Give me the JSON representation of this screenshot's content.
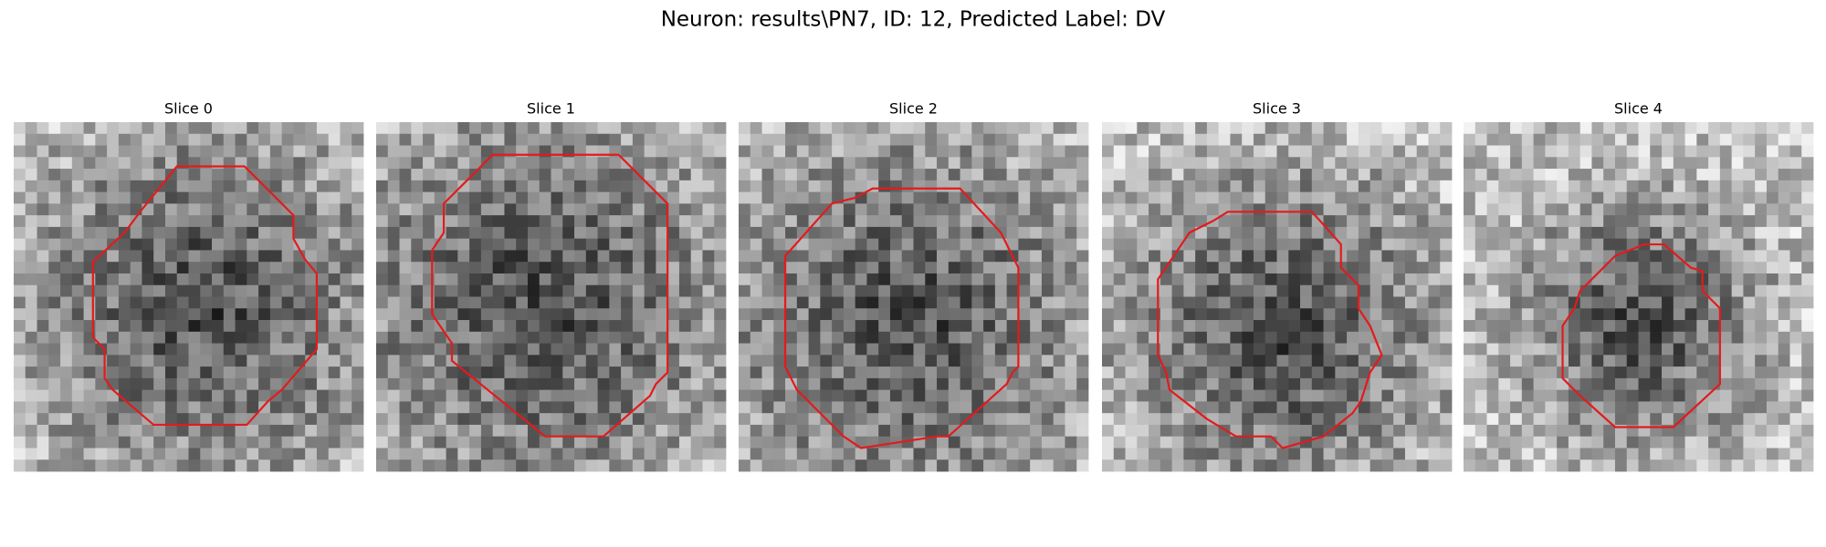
{
  "header": {
    "title": "Neuron: results\\PN7, ID: 12, Predicted Label: DV"
  },
  "panels": [
    {
      "title": "Slice 0"
    },
    {
      "title": "Slice 1"
    },
    {
      "title": "Slice 2"
    },
    {
      "title": "Slice 3"
    },
    {
      "title": "Slice 4"
    }
  ]
}
